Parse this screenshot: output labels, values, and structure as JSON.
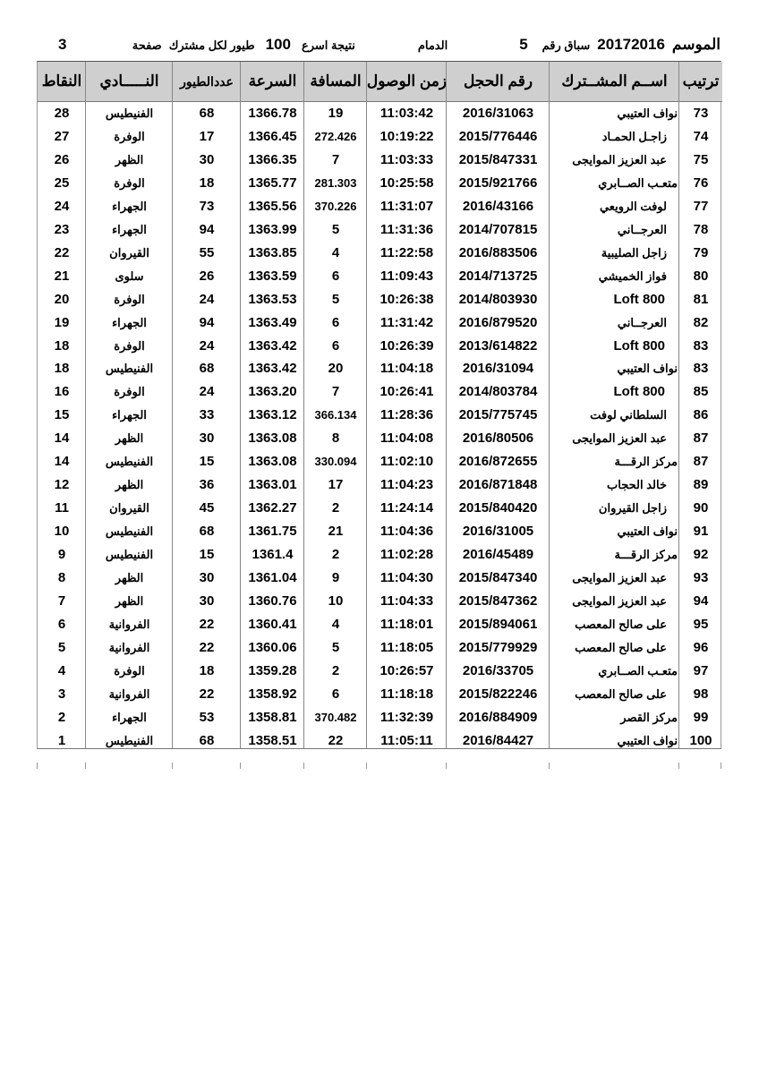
{
  "header": {
    "season_label": "الموسم",
    "season": "20172016",
    "race_label": "سباق رقم",
    "race_number": "5",
    "location": "الدمام",
    "result_label": "نتيجة اسرع",
    "birds_count": "100",
    "birds_label": "طيور لكل مشترك",
    "page_label": "صفحة",
    "page_number": "3"
  },
  "columns": {
    "rank": "ترتيب",
    "name": "اســم المشــترك",
    "ring": "رقم الحجل",
    "time": "زمن الوصول",
    "distance": "المسافة",
    "speed": "السرعة",
    "birds": "عددالطيور",
    "club": "النـــــادي",
    "points": "النقاط"
  },
  "rows": [
    {
      "rank": "73",
      "name": "نواف العتيبي",
      "ring": "2016/31063",
      "time": "11:03:42",
      "distance": "19",
      "speed": "1366.78",
      "birds": "68",
      "club": "الفنيطيس",
      "points": "28"
    },
    {
      "rank": "74",
      "name": "زاجـل الحمـاد",
      "ring": "2015/776446",
      "time": "10:19:22",
      "distance": "272.426",
      "speed": "1366.45",
      "birds": "17",
      "club": "الوفرة",
      "points": "27"
    },
    {
      "rank": "75",
      "name": "عبد العزيز الموايجى",
      "ring": "2015/847331",
      "time": "11:03:33",
      "distance": "7",
      "speed": "1366.35",
      "birds": "30",
      "club": "الظهر",
      "points": "26"
    },
    {
      "rank": "76",
      "name": "متعـب الصــابري",
      "ring": "2015/921766",
      "time": "10:25:58",
      "distance": "281.303",
      "speed": "1365.77",
      "birds": "18",
      "club": "الوفرة",
      "points": "25"
    },
    {
      "rank": "77",
      "name": "لوفت الرويعي",
      "ring": "2016/43166",
      "time": "11:31:07",
      "distance": "370.226",
      "speed": "1365.56",
      "birds": "73",
      "club": "الجهراء",
      "points": "24"
    },
    {
      "rank": "78",
      "name": "العرجــاني",
      "ring": "2014/707815",
      "time": "11:31:36",
      "distance": "5",
      "speed": "1363.99",
      "birds": "94",
      "club": "الجهراء",
      "points": "23"
    },
    {
      "rank": "79",
      "name": "زاجل الصليبية",
      "ring": "2016/883506",
      "time": "11:22:58",
      "distance": "4",
      "speed": "1363.85",
      "birds": "55",
      "club": "القيروان",
      "points": "22"
    },
    {
      "rank": "80",
      "name": "فواز الخميشي",
      "ring": "2014/713725",
      "time": "11:09:43",
      "distance": "6",
      "speed": "1363.59",
      "birds": "26",
      "club": "سلوى",
      "points": "21"
    },
    {
      "rank": "81",
      "name": "Loft 800",
      "ring": "2014/803930",
      "time": "10:26:38",
      "distance": "5",
      "speed": "1363.53",
      "birds": "24",
      "club": "الوفرة",
      "points": "20"
    },
    {
      "rank": "82",
      "name": "العرجــاني",
      "ring": "2016/879520",
      "time": "11:31:42",
      "distance": "6",
      "speed": "1363.49",
      "birds": "94",
      "club": "الجهراء",
      "points": "19"
    },
    {
      "rank": "83",
      "name": "Loft 800",
      "ring": "2013/614822",
      "time": "10:26:39",
      "distance": "6",
      "speed": "1363.42",
      "birds": "24",
      "club": "الوفرة",
      "points": "18"
    },
    {
      "rank": "83",
      "name": "نواف العتيبي",
      "ring": "2016/31094",
      "time": "11:04:18",
      "distance": "20",
      "speed": "1363.42",
      "birds": "68",
      "club": "الفنيطيس",
      "points": "18"
    },
    {
      "rank": "85",
      "name": "Loft 800",
      "ring": "2014/803784",
      "time": "10:26:41",
      "distance": "7",
      "speed": "1363.20",
      "birds": "24",
      "club": "الوفرة",
      "points": "16"
    },
    {
      "rank": "86",
      "name": "السلطاني لوفت",
      "ring": "2015/775745",
      "time": "11:28:36",
      "distance": "366.134",
      "speed": "1363.12",
      "birds": "33",
      "club": "الجهراء",
      "points": "15"
    },
    {
      "rank": "87",
      "name": "عبد العزيز الموايجى",
      "ring": "2016/80506",
      "time": "11:04:08",
      "distance": "8",
      "speed": "1363.08",
      "birds": "30",
      "club": "الظهر",
      "points": "14"
    },
    {
      "rank": "87",
      "name": "مركز الرقـــة",
      "ring": "2016/872655",
      "time": "11:02:10",
      "distance": "330.094",
      "speed": "1363.08",
      "birds": "15",
      "club": "الفنيطيس",
      "points": "14"
    },
    {
      "rank": "89",
      "name": "خالد الحجاب",
      "ring": "2016/871848",
      "time": "11:04:23",
      "distance": "17",
      "speed": "1363.01",
      "birds": "36",
      "club": "الظهر",
      "points": "12"
    },
    {
      "rank": "90",
      "name": "زاجل القيروان",
      "ring": "2015/840420",
      "time": "11:24:14",
      "distance": "2",
      "speed": "1362.27",
      "birds": "45",
      "club": "القيروان",
      "points": "11"
    },
    {
      "rank": "91",
      "name": "نواف العتيبي",
      "ring": "2016/31005",
      "time": "11:04:36",
      "distance": "21",
      "speed": "1361.75",
      "birds": "68",
      "club": "الفنيطيس",
      "points": "10"
    },
    {
      "rank": "92",
      "name": "مركز الرقـــة",
      "ring": "2016/45489",
      "time": "11:02:28",
      "distance": "2",
      "speed": "1361.4",
      "birds": "15",
      "club": "الفنيطيس",
      "points": "9"
    },
    {
      "rank": "93",
      "name": "عبد العزيز الموايجى",
      "ring": "2015/847340",
      "time": "11:04:30",
      "distance": "9",
      "speed": "1361.04",
      "birds": "30",
      "club": "الظهر",
      "points": "8"
    },
    {
      "rank": "94",
      "name": "عبد العزيز الموايجى",
      "ring": "2015/847362",
      "time": "11:04:33",
      "distance": "10",
      "speed": "1360.76",
      "birds": "30",
      "club": "الظهر",
      "points": "7"
    },
    {
      "rank": "95",
      "name": "على صالح المعصب",
      "ring": "2015/894061",
      "time": "11:18:01",
      "distance": "4",
      "speed": "1360.41",
      "birds": "22",
      "club": "الفروانية",
      "points": "6"
    },
    {
      "rank": "96",
      "name": "على صالح المعصب",
      "ring": "2015/779929",
      "time": "11:18:05",
      "distance": "5",
      "speed": "1360.06",
      "birds": "22",
      "club": "الفروانية",
      "points": "5"
    },
    {
      "rank": "97",
      "name": "متعـب الصــابري",
      "ring": "2016/33705",
      "time": "10:26:57",
      "distance": "2",
      "speed": "1359.28",
      "birds": "18",
      "club": "الوفرة",
      "points": "4"
    },
    {
      "rank": "98",
      "name": "على صالح المعصب",
      "ring": "2015/822246",
      "time": "11:18:18",
      "distance": "6",
      "speed": "1358.92",
      "birds": "22",
      "club": "الفروانية",
      "points": "3"
    },
    {
      "rank": "99",
      "name": "مركز القصر",
      "ring": "2016/884909",
      "time": "11:32:39",
      "distance": "370.482",
      "speed": "1358.81",
      "birds": "53",
      "club": "الجهراء",
      "points": "2"
    },
    {
      "rank": "100",
      "name": "نواف العتيبي",
      "ring": "2016/84427",
      "time": "11:05:11",
      "distance": "22",
      "speed": "1358.51",
      "birds": "68",
      "club": "الفنيطيس",
      "points": "1"
    }
  ]
}
